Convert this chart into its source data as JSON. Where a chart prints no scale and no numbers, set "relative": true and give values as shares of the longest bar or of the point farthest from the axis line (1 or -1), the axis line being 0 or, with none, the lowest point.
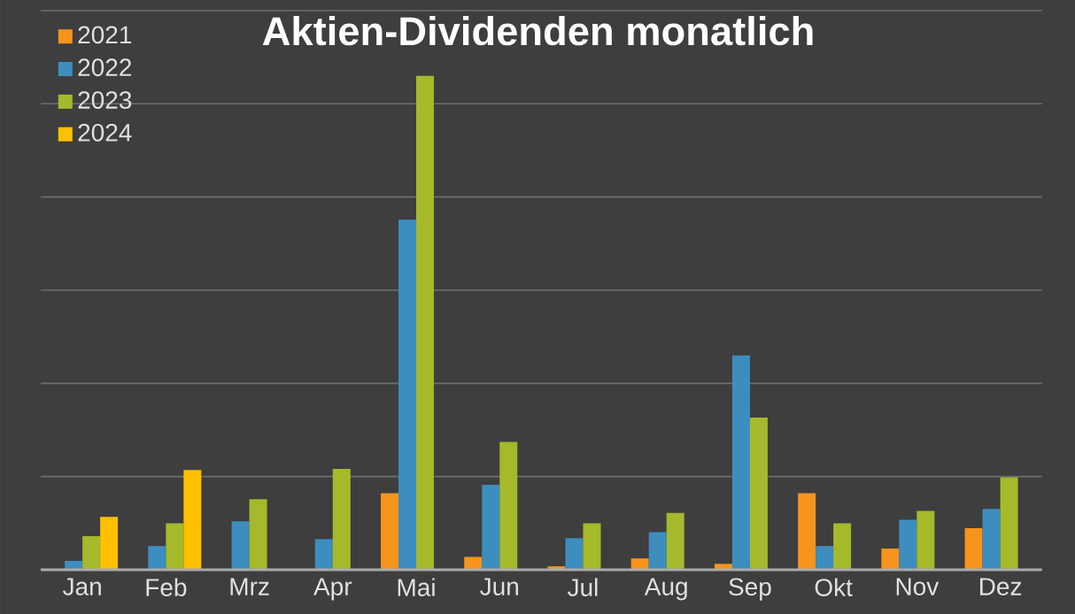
{
  "chart_data": {
    "type": "bar",
    "title": "Aktien-Dividenden monatlich",
    "relative": true,
    "grid": "y",
    "legend": "top left",
    "categories": [
      "Jan",
      "Feb",
      "Mrz",
      "Apr",
      "Mai",
      "Jun",
      "Jul",
      "Aug",
      "Sep",
      "Okt",
      "Nov",
      "Dez"
    ],
    "series": [
      {
        "name": "2021",
        "color": "#f7941d",
        "values": [
          null,
          null,
          null,
          null,
          0.155,
          0.026,
          0.007,
          0.023,
          0.012,
          0.155,
          0.043,
          0.084
        ]
      },
      {
        "name": "2022",
        "color": "#3d8ebf",
        "values": [
          0.018,
          0.048,
          0.098,
          0.062,
          0.709,
          0.172,
          0.064,
          0.076,
          0.434,
          0.048,
          0.101,
          0.123
        ]
      },
      {
        "name": "2023",
        "color": "#a5b92b",
        "values": [
          0.068,
          0.094,
          0.143,
          0.204,
          1,
          0.259,
          0.094,
          0.115,
          0.308,
          0.094,
          0.119,
          0.187
        ]
      },
      {
        "name": "2024",
        "color": "#ffc000",
        "values": [
          0.107,
          0.202,
          null,
          null,
          null,
          null,
          null,
          null,
          null,
          null,
          null,
          null
        ]
      }
    ]
  }
}
